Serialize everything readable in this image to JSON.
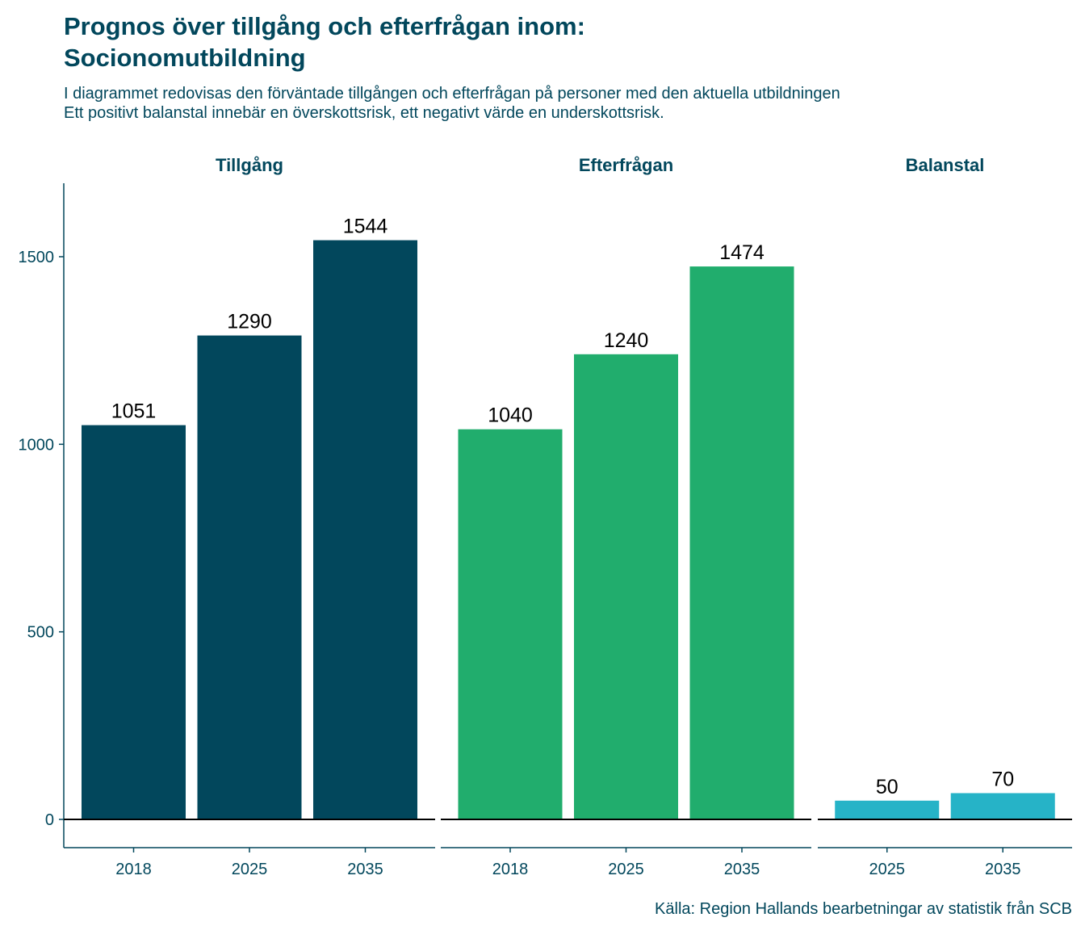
{
  "chart_data": {
    "type": "bar",
    "title_line1": "Prognos över tillgång och efterfrågan inom:",
    "title_line2": "Socionomutbildning",
    "subtitle_line1": "I diagrammet redovisas den förväntade tillgången och efterfrågan på personer med den aktuella utbildningen",
    "subtitle_line2": "Ett positivt balanstal innebär en överskottsrisk, ett negativt värde en underskottsrisk.",
    "caption": "Källa: Region Hallands bearbetningar av statistik från SCB",
    "ylim": [
      -75,
      1700
    ],
    "yticks": [
      0,
      500,
      1000,
      1500
    ],
    "grid": false,
    "legend": "none",
    "facets": [
      {
        "label": "Tillgång",
        "color": "#02475c",
        "categories": [
          "2018",
          "2025",
          "2035"
        ],
        "values": [
          1051,
          1290,
          1544
        ]
      },
      {
        "label": "Efterfrågan",
        "color": "#21ad6d",
        "categories": [
          "2018",
          "2025",
          "2035"
        ],
        "values": [
          1040,
          1240,
          1474
        ]
      },
      {
        "label": "Balanstal",
        "color": "#26b3c7",
        "categories": [
          "2025",
          "2035"
        ],
        "values": [
          50,
          70
        ]
      }
    ]
  }
}
